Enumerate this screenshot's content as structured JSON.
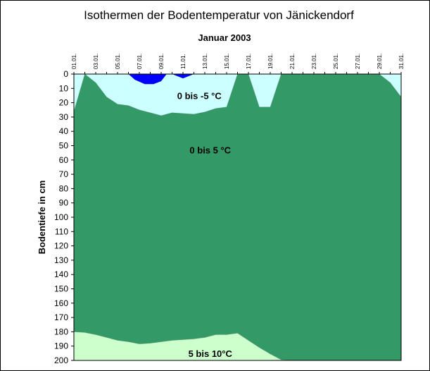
{
  "chart_data": {
    "type": "area",
    "title": "Isothermen der Bodentemperatur von Jänickendorf",
    "subtitle": "Januar 2003",
    "ylabel": "Bodentiefe in cm",
    "xlabel": "",
    "x_ticks": [
      "01.01.",
      "03.01.",
      "05.01.",
      "07.01.",
      "09.01.",
      "11.01.",
      "13.01.",
      "15.01.",
      "17.01.",
      "19.01.",
      "21.01.",
      "23.01.",
      "25.01.",
      "27.01.",
      "29.01.",
      "31.01."
    ],
    "x_range": [
      1,
      31
    ],
    "y_ticks": [
      0,
      10,
      20,
      30,
      40,
      50,
      60,
      70,
      80,
      90,
      100,
      110,
      120,
      130,
      140,
      150,
      160,
      170,
      180,
      190,
      200
    ],
    "ylim": [
      0,
      200
    ],
    "y_inverted": true,
    "grid": false,
    "background_color": "#ccffff",
    "series": [
      {
        "label": "0 bis 5 °C",
        "color": "#339966",
        "layer": "base",
        "top": [
          [
            1,
            26
          ],
          [
            2,
            0
          ],
          [
            3,
            6
          ],
          [
            4,
            16
          ],
          [
            5,
            21
          ],
          [
            6,
            22
          ],
          [
            7,
            25
          ],
          [
            8,
            27
          ],
          [
            9,
            29
          ],
          [
            10,
            27
          ],
          [
            11,
            27.5
          ],
          [
            12,
            28
          ],
          [
            13,
            26.5
          ],
          [
            14,
            24
          ],
          [
            15,
            23
          ],
          [
            16,
            0
          ],
          [
            17,
            0
          ],
          [
            18,
            23
          ],
          [
            19,
            23
          ],
          [
            20,
            0
          ],
          [
            21,
            0
          ],
          [
            22,
            0
          ],
          [
            23,
            0
          ],
          [
            24,
            0
          ],
          [
            25,
            0
          ],
          [
            26,
            0
          ],
          [
            27,
            0
          ],
          [
            28,
            0
          ],
          [
            29,
            0
          ],
          [
            30,
            6
          ],
          [
            31,
            16
          ]
        ]
      },
      {
        "label": "0 bis -5 °C",
        "color": "#0000ff",
        "layer": "cold",
        "polygon": [
          [
            6,
            0
          ],
          [
            6.6,
            4
          ],
          [
            7.5,
            7
          ],
          [
            8.3,
            7
          ],
          [
            9,
            5
          ],
          [
            9.5,
            0
          ]
        ]
      },
      {
        "label": "",
        "color": "#0000ff",
        "layer": "cold",
        "polygon": [
          [
            10,
            0
          ],
          [
            11,
            3
          ],
          [
            12,
            0
          ]
        ]
      },
      {
        "label": "5 bis 10°C",
        "color": "#ccffcc",
        "layer": "warm",
        "top": [
          [
            1,
            180
          ],
          [
            2,
            180.5
          ],
          [
            3,
            182
          ],
          [
            4,
            184
          ],
          [
            5,
            186
          ],
          [
            6,
            187
          ],
          [
            7,
            188.5
          ],
          [
            8,
            188
          ],
          [
            9,
            187
          ],
          [
            10,
            186
          ],
          [
            11,
            185.5
          ],
          [
            12,
            185
          ],
          [
            13,
            184
          ],
          [
            14,
            182
          ],
          [
            15,
            182
          ],
          [
            16,
            181
          ],
          [
            17,
            186
          ],
          [
            18,
            191
          ],
          [
            19,
            195.5
          ],
          [
            20,
            199.5
          ],
          [
            21,
            200
          ],
          [
            22,
            200
          ],
          [
            23,
            200
          ],
          [
            24,
            200
          ],
          [
            25,
            200
          ],
          [
            26,
            200
          ],
          [
            27,
            200
          ],
          [
            28,
            200
          ],
          [
            29,
            200
          ],
          [
            30,
            200
          ],
          [
            31,
            200
          ]
        ]
      }
    ],
    "annotations": [
      {
        "text": "0 bis -5 °C",
        "x": 12.5,
        "y": 15
      },
      {
        "text": "0 bis 5 °C",
        "x": 13.5,
        "y": 53
      },
      {
        "text": "5 bis 10°C",
        "x": 13.5,
        "y": 195
      }
    ]
  }
}
